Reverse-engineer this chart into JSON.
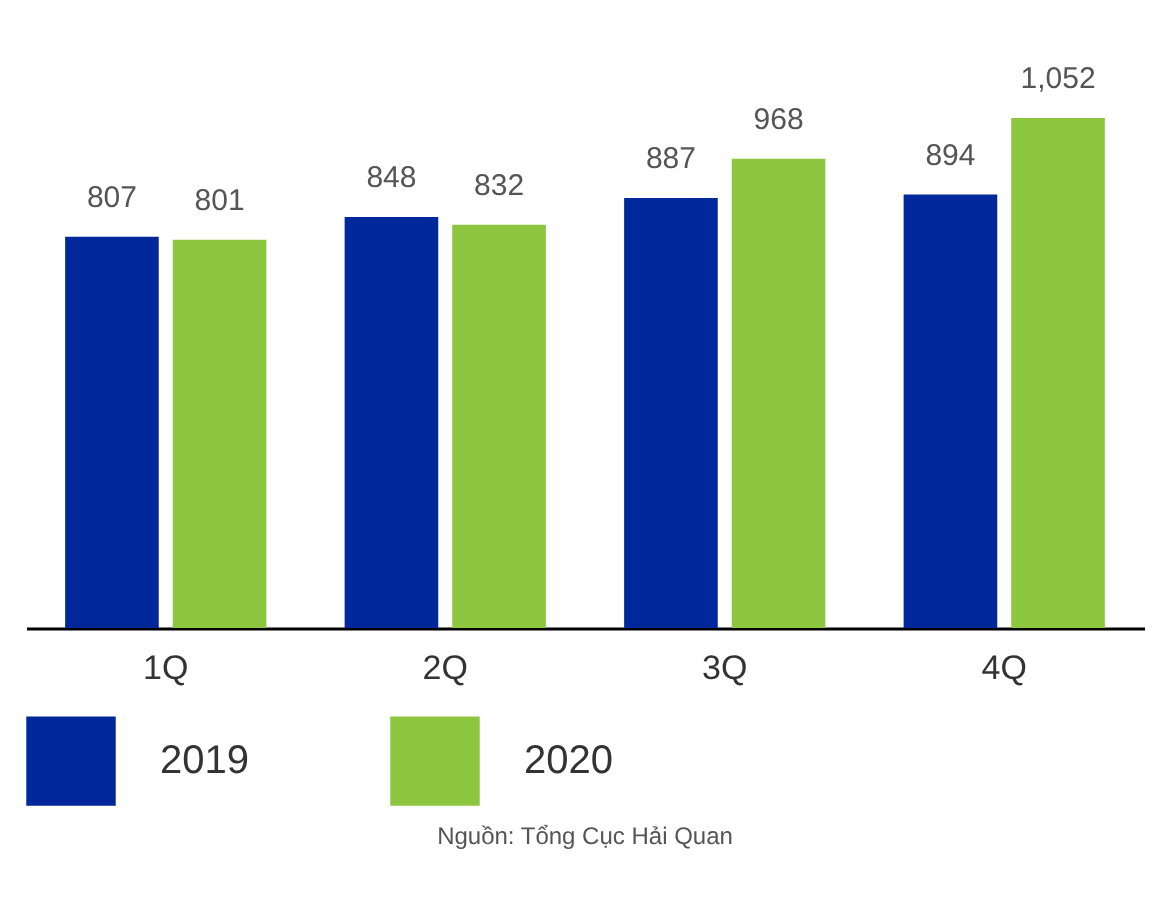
{
  "chart_data": {
    "type": "bar",
    "categories": [
      "1Q",
      "2Q",
      "3Q",
      "4Q"
    ],
    "series": [
      {
        "name": "2019",
        "color": "#00289b",
        "values": [
          807,
          848,
          887,
          894
        ],
        "value_labels": [
          "807",
          "848",
          "887",
          "894"
        ]
      },
      {
        "name": "2020",
        "color": "#8dc63f",
        "values": [
          801,
          832,
          968,
          1052
        ],
        "value_labels": [
          "801",
          "832",
          "968",
          "1,052"
        ]
      }
    ],
    "legend": "bottom",
    "grid": false,
    "annotations": [
      "Nguồn: Tổng Cục Hải Quan"
    ]
  }
}
